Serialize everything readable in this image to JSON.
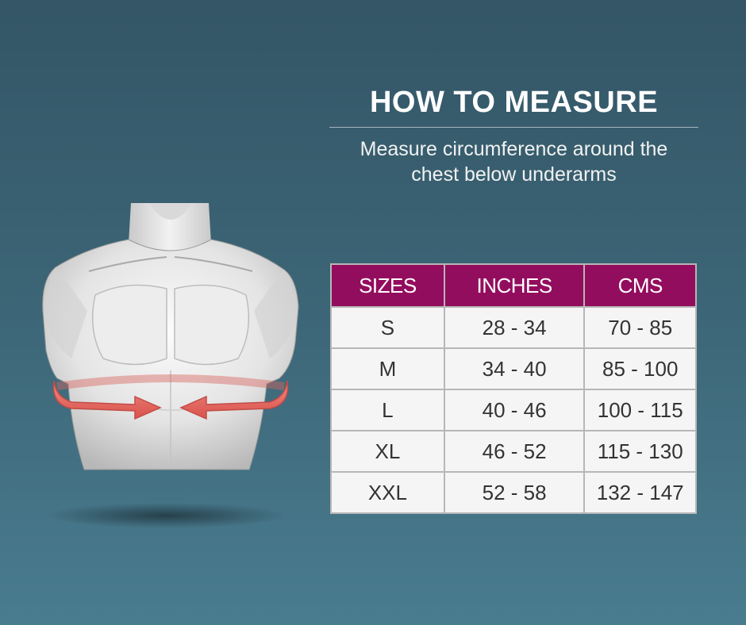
{
  "heading": {
    "title": "HOW TO MEASURE",
    "subtitle_line1": "Measure circumference around the",
    "subtitle_line2": "chest below underarms"
  },
  "illustration": {
    "subject": "male-torso",
    "arrow_color": "#e0605a"
  },
  "size_table": {
    "headers": [
      "SIZES",
      "INCHES",
      "CMS"
    ],
    "header_color": "#930d5e",
    "rows": [
      [
        "S",
        "28 - 34",
        "70 - 85"
      ],
      [
        "M",
        "34 - 40",
        "85 - 100"
      ],
      [
        "L",
        "40 - 46",
        "100 - 115"
      ],
      [
        "XL",
        "46 - 52",
        "115 - 130"
      ],
      [
        "XXL",
        "52 - 58",
        "132 - 147"
      ]
    ]
  }
}
